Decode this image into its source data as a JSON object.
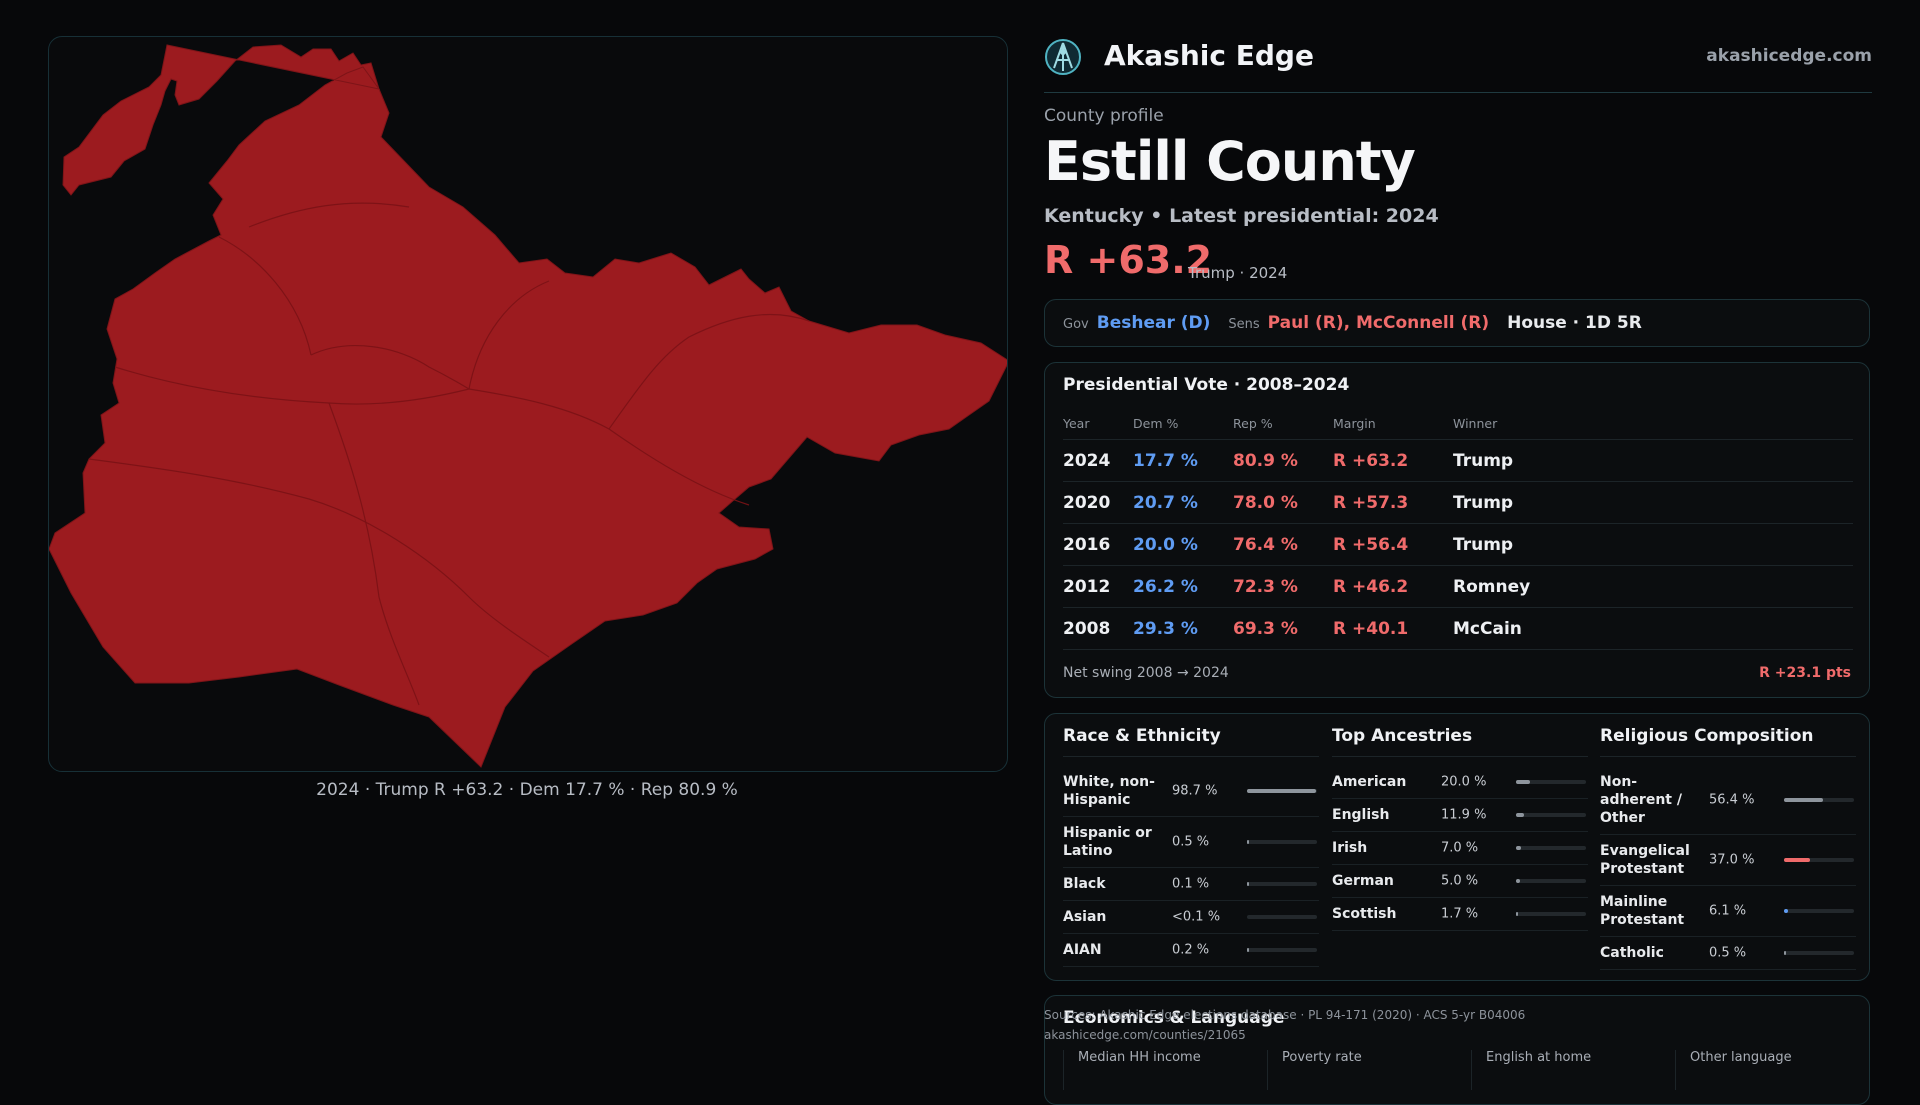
{
  "map": {
    "caption": "2024 · Trump R +63.2 · Dem 17.7 % · Rep 80.9 %",
    "fill_color": "#9c1b1f"
  },
  "brand": {
    "name": "Akashic Edge",
    "url": "akashicedge.com",
    "logo_icon": "globe-icon"
  },
  "profile": {
    "eyebrow": "County profile",
    "title": "Estill County",
    "subtitle": "Kentucky • Latest presidential: 2024",
    "margin": "R +63.2",
    "margin_note": "Trump · 2024"
  },
  "officials": {
    "gov_label": "Gov",
    "gov": "Beshear (D)",
    "sens_label": "Sens",
    "sens": "Paul (R), McConnell (R)",
    "house": "House · 1D 5R"
  },
  "presidential": {
    "title": "Presidential Vote · 2008–2024",
    "headers": [
      "Year",
      "Dem %",
      "Rep %",
      "Margin",
      "Winner"
    ],
    "rows": [
      {
        "year": "2024",
        "dem": "17.7 %",
        "rep": "80.9 %",
        "margin": "R +63.2",
        "winner": "Trump"
      },
      {
        "year": "2020",
        "dem": "20.7 %",
        "rep": "78.0 %",
        "margin": "R +57.3",
        "winner": "Trump"
      },
      {
        "year": "2016",
        "dem": "20.0 %",
        "rep": "76.4 %",
        "margin": "R +56.4",
        "winner": "Trump"
      },
      {
        "year": "2012",
        "dem": "26.2 %",
        "rep": "72.3 %",
        "margin": "R +46.2",
        "winner": "Romney"
      },
      {
        "year": "2008",
        "dem": "29.3 %",
        "rep": "69.3 %",
        "margin": "R +40.1",
        "winner": "McCain"
      }
    ],
    "swing_label": "Net swing 2008 → 2024",
    "swing_value": "R +23.1 pts"
  },
  "race": {
    "title": "Race & Ethnicity",
    "items": [
      {
        "name": "White, non-Hispanic",
        "value": "98.7 %",
        "fraction": 0.987,
        "color": "#8e959d"
      },
      {
        "name": "Hispanic or Latino",
        "value": "0.5 %",
        "fraction": 0.005,
        "color": "#8e959d"
      },
      {
        "name": "Black",
        "value": "0.1 %",
        "fraction": 0.001,
        "color": "#8e959d"
      },
      {
        "name": "Asian",
        "value": "<0.1 %",
        "fraction": 0.0,
        "color": "#8e959d"
      },
      {
        "name": "AIAN",
        "value": "0.2 %",
        "fraction": 0.002,
        "color": "#8e959d"
      }
    ]
  },
  "ancestry": {
    "title": "Top Ancestries",
    "items": [
      {
        "name": "American",
        "value": "20.0 %",
        "fraction": 0.2,
        "color": "#8e959d"
      },
      {
        "name": "English",
        "value": "11.9 %",
        "fraction": 0.119,
        "color": "#8e959d"
      },
      {
        "name": "Irish",
        "value": "7.0 %",
        "fraction": 0.07,
        "color": "#8e959d"
      },
      {
        "name": "German",
        "value": "5.0 %",
        "fraction": 0.05,
        "color": "#8e959d"
      },
      {
        "name": "Scottish",
        "value": "1.7 %",
        "fraction": 0.017,
        "color": "#8e959d"
      }
    ]
  },
  "religion": {
    "title": "Religious Composition",
    "items": [
      {
        "name": "Non-adherent / Other",
        "value": "56.4 %",
        "fraction": 0.564,
        "color": "#8e959d"
      },
      {
        "name": "Evangelical Protestant",
        "value": "37.0 %",
        "fraction": 0.37,
        "color": "#f06b6b"
      },
      {
        "name": "Mainline Protestant",
        "value": "6.1 %",
        "fraction": 0.061,
        "color": "#5f9cf3"
      },
      {
        "name": "Catholic",
        "value": "0.5 %",
        "fraction": 0.005,
        "color": "#8e959d"
      }
    ]
  },
  "economics": {
    "title": "Economics & Language",
    "columns": [
      "Median HH income",
      "Poverty rate",
      "English at home",
      "Other language"
    ]
  },
  "sources": {
    "line1": "Sources: Akashic Edge elections database · PL 94-171 (2020) · ACS 5-yr B04006",
    "line2": "akashicedge.com/counties/21065"
  }
}
